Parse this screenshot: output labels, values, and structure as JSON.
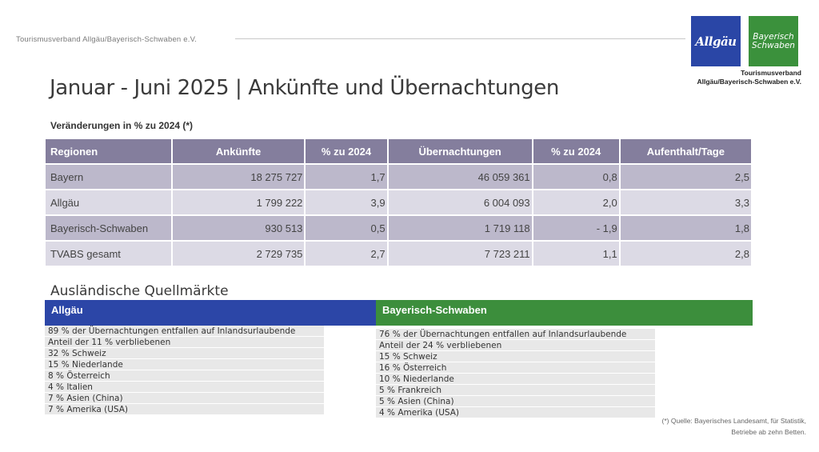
{
  "header": {
    "org_name": "Tourismusverband Allgäu/Bayerisch-Schwaben e.V.",
    "logo_allgaeu": "Allgäu",
    "logo_bs_line1": "Bayerisch",
    "logo_bs_line2": "Schwaben",
    "caption_line1": "Tourismusverband",
    "caption_line2": "Allgäu/Bayerisch-Schwaben e.V.",
    "brand_blue": "#2c46a7",
    "brand_green": "#3c8e3c"
  },
  "title": "Januar - Juni 2025 | Ankünfte und Übernachtungen",
  "subtitle": "Veränderungen in % zu 2024 (*)",
  "table": {
    "headers": [
      "Regionen",
      "Ankünfte",
      "% zu 2024",
      "Übernachtungen",
      "% zu 2024",
      "Aufenthalt/Tage"
    ],
    "rows": [
      [
        "Bayern",
        "18 275 727",
        "1,7",
        "46 059 361",
        "0,8",
        "2,5"
      ],
      [
        "Allgäu",
        "1 799 222",
        "3,9",
        "6 004 093",
        "2,0",
        "3,3"
      ],
      [
        "Bayerisch-Schwaben",
        "930 513",
        "0,5",
        "1 719 118",
        "- 1,9",
        "1,8"
      ],
      [
        "TVABS gesamt",
        "2 729 735",
        "2,7",
        "7 723 211",
        "1,1",
        "2,8"
      ]
    ]
  },
  "markets": {
    "heading": "Ausländische Quellmärkte",
    "allgaeu": {
      "label": "Allgäu",
      "lines": [
        "89 % der Übernachtungen entfallen auf Inlandsurlaubende",
        "Anteil der 11 % verbliebenen",
        "32 % Schweiz",
        "15 % Niederlande",
        " 8 % Österreich",
        " 4 % Italien",
        " 7 % Asien (China)",
        " 7 % Amerika (USA)"
      ]
    },
    "bs": {
      "label": "Bayerisch-Schwaben",
      "lines": [
        "76 % der Übernachtungen entfallen auf Inlandsurlaubende",
        "Anteil der 24 % verbliebenen",
        "15 % Schweiz",
        "16 % Österreich",
        "10 % Niederlande",
        " 5 % Frankreich",
        " 5 % Asien (China)",
        " 4 % Amerika (USA)"
      ]
    }
  },
  "source": {
    "line1": "(*)  Quelle: Bayerisches Landesamt, für Statistik,",
    "line2": "Betriebe ab zehn Betten."
  }
}
